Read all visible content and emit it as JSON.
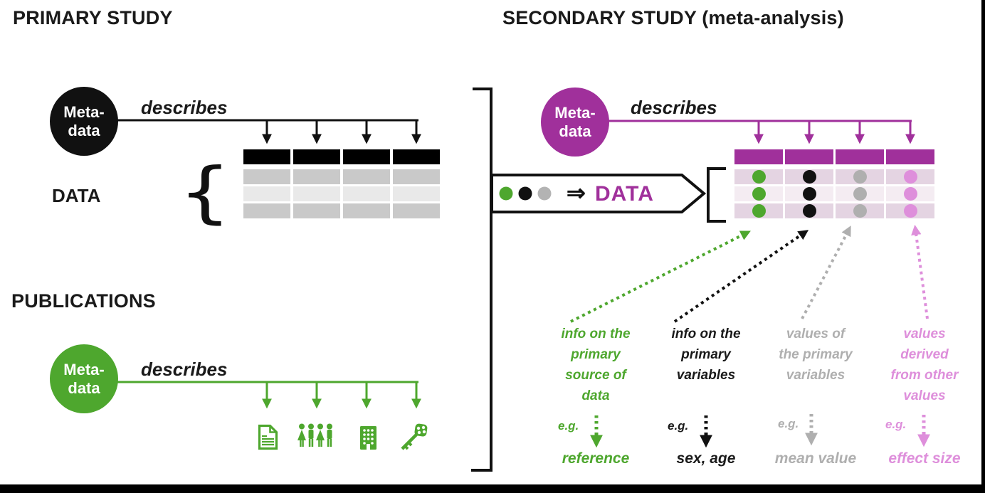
{
  "colors": {
    "green": "#4EA72E",
    "purple": "#A0309B",
    "pink": "#DE8FDB",
    "gray": "#AFAFAF",
    "ink": "#111111",
    "table_gray_dark": "#C9C9C9",
    "table_gray_light": "#E9E9E9",
    "table_mauve_dark": "#E4D4E2",
    "table_mauve_light": "#F4ECF2",
    "banner_gray_dot": "#B3B3B3"
  },
  "primary_study": {
    "title": "PRIMARY STUDY",
    "metadata_circle": [
      "Meta-",
      "data"
    ],
    "describes_label": "describes",
    "data_label": "DATA",
    "brace_glyph": "{",
    "table": {
      "columns": 4,
      "rows": 3
    }
  },
  "publications": {
    "title": "PUBLICATIONS",
    "metadata_circle": [
      "Meta-",
      "data"
    ],
    "describes_label": "describes",
    "icons": [
      "document-icon",
      "people-icon",
      "building-icon",
      "key-icon"
    ]
  },
  "secondary_study": {
    "title": "SECONDARY STUDY (meta-analysis)",
    "metadata_circle": [
      "Meta-",
      "data"
    ],
    "describes_label": "describes",
    "banner": {
      "dots": [
        "#4EA72E",
        "#111111",
        "#B3B3B3"
      ],
      "arrow_symbol": "⇒",
      "label": "DATA"
    },
    "table": {
      "columns": 4,
      "rows": 3,
      "dot_colors": [
        "#4EA72E",
        "#111111",
        "#AFAFAF",
        "#DE8FDB"
      ]
    },
    "annotations": [
      {
        "id": "source-info",
        "color": "#4EA72E",
        "lines": [
          "info on the",
          "primary",
          "source of",
          "data"
        ],
        "eg": "e.g.",
        "example": "reference"
      },
      {
        "id": "variable-info",
        "color": "#1a1a1a",
        "lines": [
          "info on the",
          "primary",
          "variables"
        ],
        "eg": "e.g.",
        "example": "sex, age"
      },
      {
        "id": "variable-values",
        "color": "#AFAFAF",
        "lines": [
          "values of",
          "the primary",
          "variables"
        ],
        "eg": "e.g.",
        "example": "mean value"
      },
      {
        "id": "derived-values",
        "color": "#DE8FDB",
        "lines": [
          "values",
          "derived",
          "from other",
          "values"
        ],
        "eg": "e.g.",
        "example": "effect size"
      }
    ]
  }
}
